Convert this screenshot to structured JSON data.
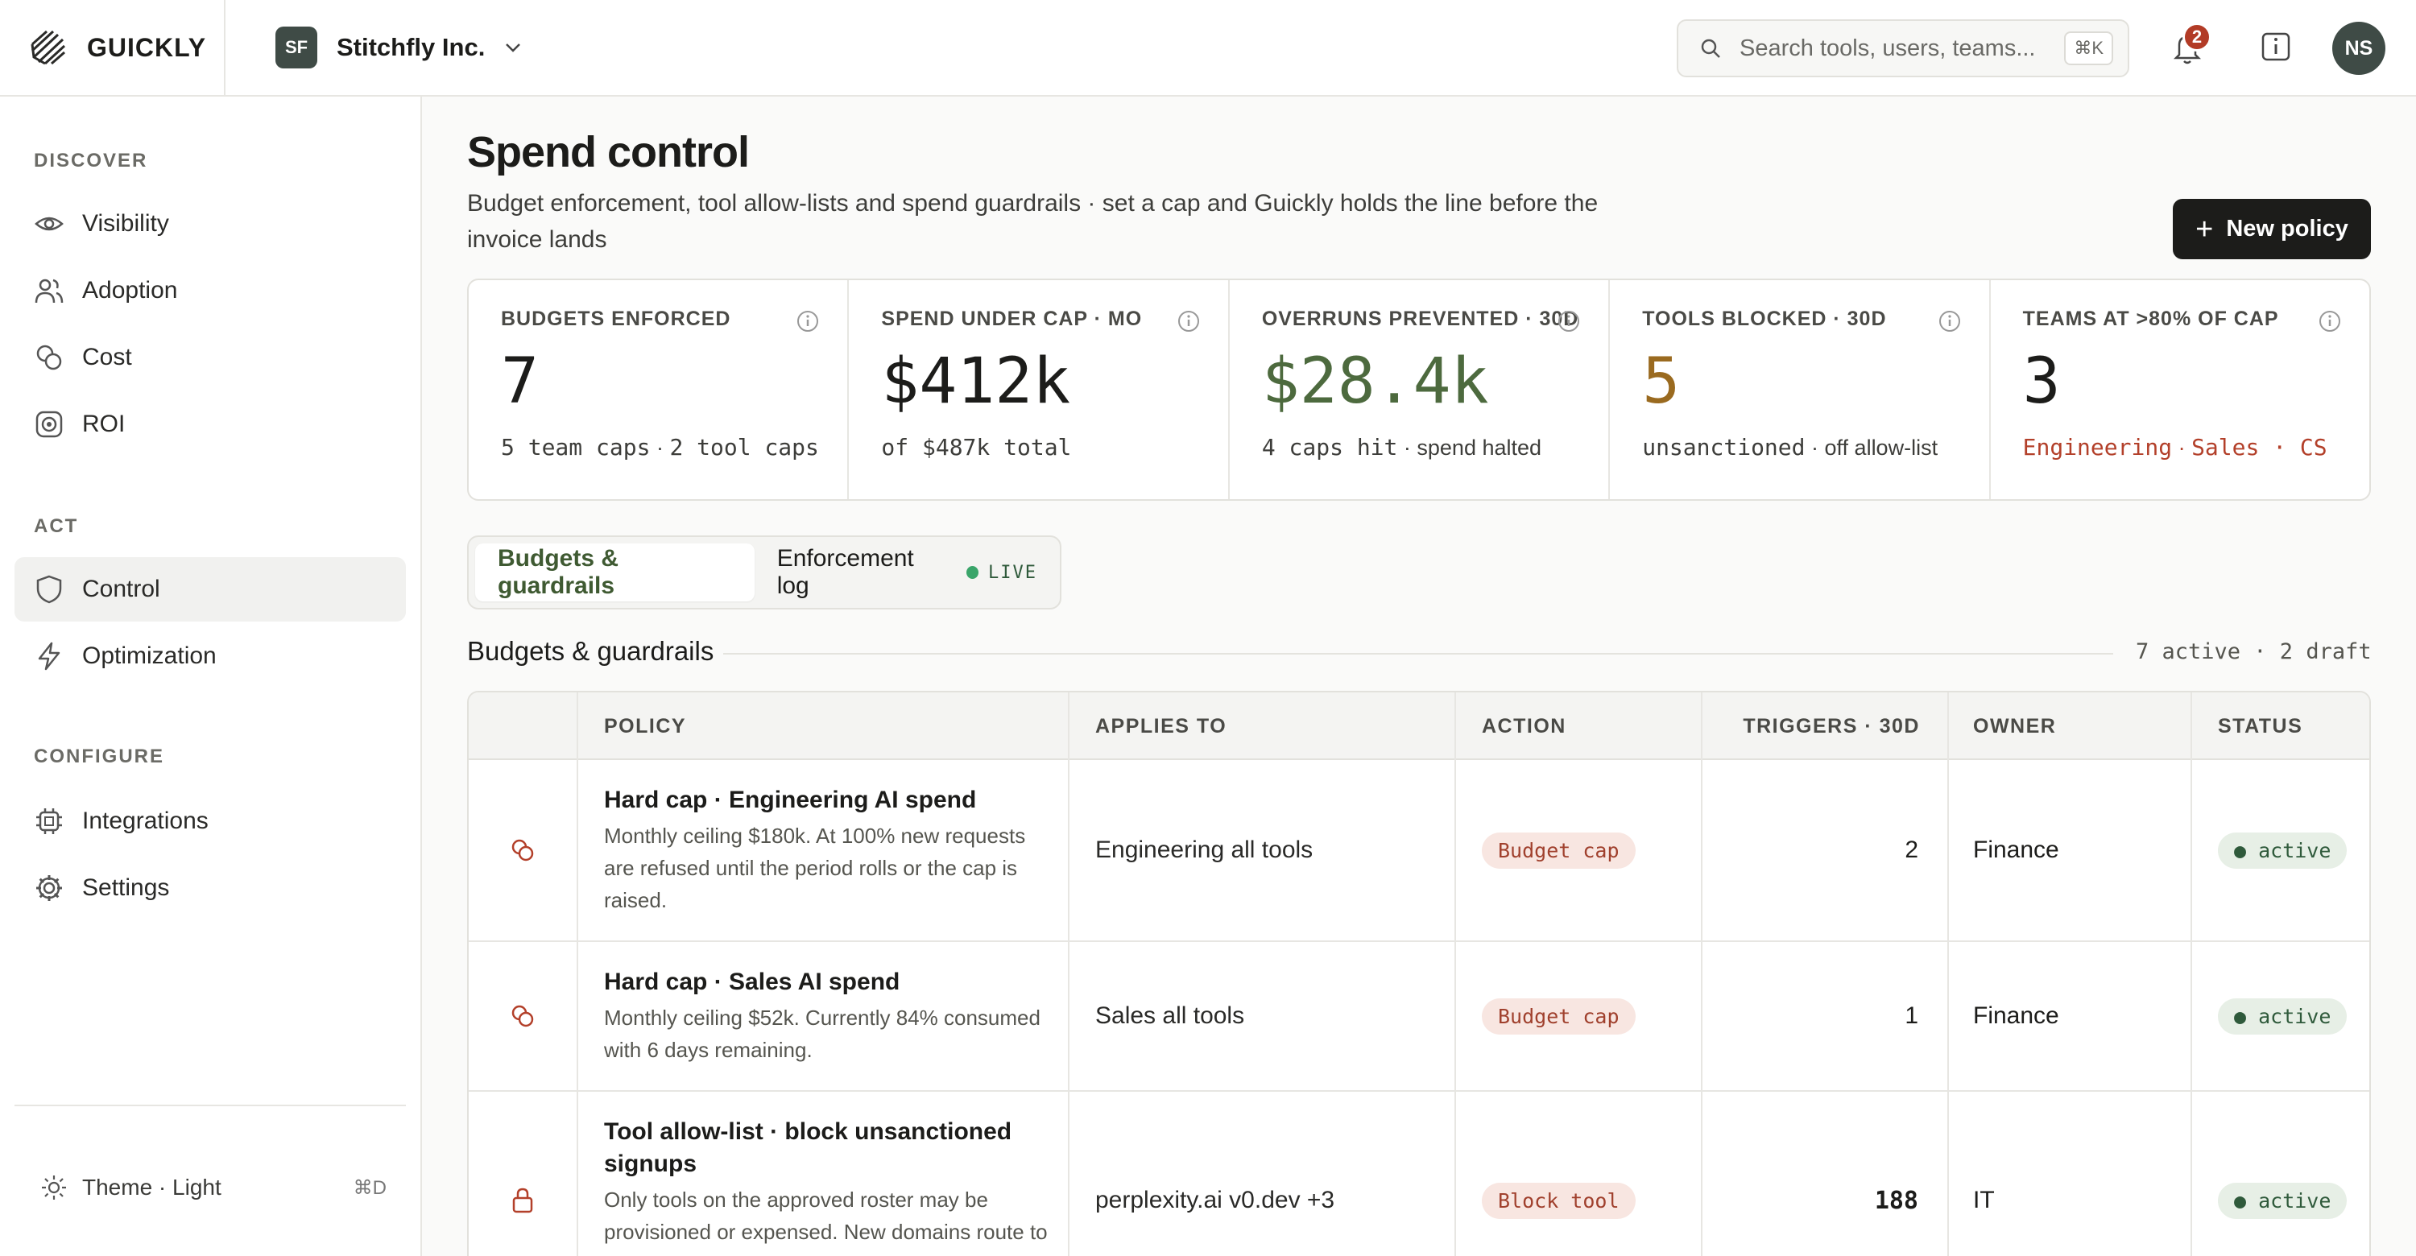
{
  "brand": {
    "name": "GUICKLY"
  },
  "org": {
    "initials": "SF",
    "name": "Stitchfly Inc."
  },
  "search": {
    "placeholder": "Search tools, users, teams...",
    "shortcut": "⌘K"
  },
  "notifications": {
    "count": "2"
  },
  "user": {
    "initials": "NS"
  },
  "sidebar": {
    "groups": [
      {
        "label": "DISCOVER",
        "items": [
          {
            "label": "Visibility",
            "icon": "eye-icon"
          },
          {
            "label": "Adoption",
            "icon": "users-icon"
          },
          {
            "label": "Cost",
            "icon": "coins-icon"
          },
          {
            "label": "ROI",
            "icon": "target-icon"
          }
        ]
      },
      {
        "label": "ACT",
        "items": [
          {
            "label": "Control",
            "icon": "shield-icon",
            "active": true
          },
          {
            "label": "Optimization",
            "icon": "bolt-icon"
          }
        ]
      },
      {
        "label": "CONFIGURE",
        "items": [
          {
            "label": "Integrations",
            "icon": "chip-icon"
          },
          {
            "label": "Settings",
            "icon": "gear-icon"
          }
        ]
      }
    ],
    "theme": {
      "label": "Theme · Light",
      "shortcut": "⌘D"
    }
  },
  "page": {
    "title": "Spend control",
    "subtitle": "Budget enforcement, tool allow-lists and spend guardrails · set a cap and Guickly holds the line before the invoice lands",
    "new_policy_label": "New policy"
  },
  "kpis": [
    {
      "label": "BUDGETS ENFORCED",
      "value": "7",
      "foot_a": "5 team caps",
      "foot_sep": " · ",
      "foot_b": "2 tool caps",
      "color": "#1c1c1a"
    },
    {
      "label": "SPEND UNDER CAP · MO",
      "value": "$412k",
      "foot_a": "of $487k total",
      "foot_sep": "",
      "foot_b": "",
      "color": "#1c1c1a"
    },
    {
      "label": "OVERRUNS PREVENTED · 30D",
      "value": "$28.4k",
      "foot_a": "4 caps hit",
      "foot_sep": " · ",
      "foot_b": "spend halted",
      "color": "#4d6a3e"
    },
    {
      "label": "TOOLS BLOCKED · 30D",
      "value": "5",
      "foot_a": "unsanctioned",
      "foot_sep": " · ",
      "foot_b": "off allow-list",
      "color": "#9a6a1f"
    },
    {
      "label": "TEAMS AT >80% OF CAP",
      "value": "3",
      "foot_a": "Engineering",
      "foot_sep": " · ",
      "foot_b": "Sales · CS",
      "color": "#1c1c1a"
    }
  ],
  "tabs": [
    {
      "label": "Budgets & guardrails",
      "active": true
    },
    {
      "label": "Enforcement log",
      "badge": "LIVE"
    }
  ],
  "section": {
    "title": "Budgets & guardrails",
    "meta": "7 active · 2 draft"
  },
  "table": {
    "headers": [
      "POLICY",
      "APPLIES TO",
      "ACTION",
      "TRIGGERS · 30D",
      "OWNER",
      "STATUS"
    ],
    "rows": [
      {
        "icon": "coins-icon",
        "title": "Hard cap · Engineering AI spend",
        "desc": "Monthly ceiling $180k. At 100% new requests are refused until the period rolls or the cap is raised.",
        "applies": "Engineering all tools",
        "action": "Budget cap",
        "triggers": "2",
        "owner": "Finance",
        "status": "● active"
      },
      {
        "icon": "coins-icon",
        "title": "Hard cap · Sales AI spend",
        "desc": "Monthly ceiling $52k. Currently 84% consumed with 6 days remaining.",
        "applies": "Sales all tools",
        "action": "Budget cap",
        "triggers": "1",
        "owner": "Finance",
        "status": "● active"
      },
      {
        "icon": "lock-icon",
        "title": "Tool allow-list · block unsanctioned signups",
        "desc": "Only tools on the approved roster may be provisioned or expensed. New domains route to",
        "applies": "perplexity.ai v0.dev +3",
        "action": "Block tool",
        "triggers": "188",
        "owner": "IT",
        "status": "● active"
      }
    ]
  }
}
